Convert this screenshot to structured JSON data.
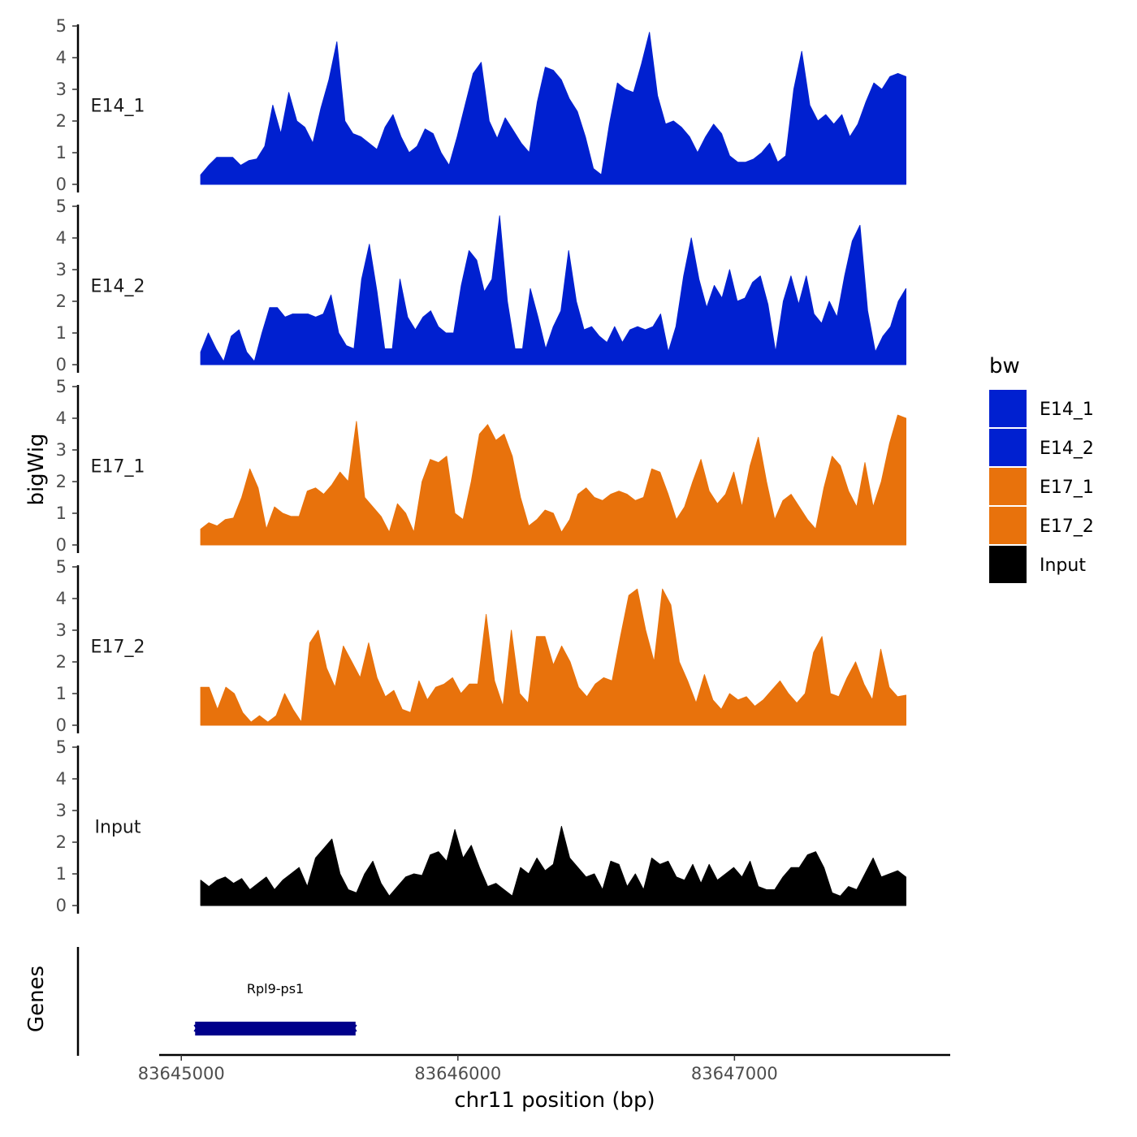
{
  "chart_data": {
    "type": "area",
    "ylabel": "bigWig",
    "xlabel": "chr11 position (bp)",
    "genes_label": "Genes",
    "x_range": [
      83644920,
      83647780
    ],
    "x_ticks": [
      {
        "value": 83645000,
        "label": "83645000"
      },
      {
        "value": 83646000,
        "label": "83646000"
      },
      {
        "value": 83647000,
        "label": "83647000"
      }
    ],
    "y_range": [
      0,
      5
    ],
    "y_ticks": [
      {
        "value": 0,
        "label": "0"
      },
      {
        "value": 1,
        "label": "1"
      },
      {
        "value": 2,
        "label": "2"
      },
      {
        "value": 3,
        "label": "3"
      },
      {
        "value": 4,
        "label": "4"
      },
      {
        "value": 5,
        "label": "5"
      }
    ],
    "x_start": 83645070,
    "x_end": 83647620,
    "legend": {
      "title": "bw",
      "entries": [
        {
          "label": "E14_1",
          "color": "#0020D0"
        },
        {
          "label": "E14_2",
          "color": "#0020D0"
        },
        {
          "label": "E17_1",
          "color": "#E8720C"
        },
        {
          "label": "E17_2",
          "color": "#E8720C"
        },
        {
          "label": "Input",
          "color": "#000000"
        }
      ]
    },
    "series": [
      {
        "name": "E14_1",
        "color": "#0020D0",
        "values": [
          0.3,
          0.6,
          0.85,
          0.85,
          0.85,
          0.6,
          0.75,
          0.8,
          1.2,
          2.5,
          1.6,
          2.9,
          2.0,
          1.8,
          1.3,
          2.4,
          3.3,
          4.5,
          2.0,
          1.6,
          1.5,
          1.3,
          1.1,
          1.8,
          2.2,
          1.5,
          1.0,
          1.2,
          1.75,
          1.6,
          1.0,
          0.6,
          1.5,
          2.5,
          3.5,
          3.85,
          2.0,
          1.45,
          2.1,
          1.7,
          1.3,
          1.0,
          2.6,
          3.7,
          3.6,
          3.3,
          2.7,
          2.3,
          1.5,
          0.5,
          0.3,
          1.9,
          3.2,
          3.0,
          2.9,
          3.8,
          4.8,
          2.8,
          1.9,
          2.0,
          1.8,
          1.5,
          1.0,
          1.5,
          1.9,
          1.6,
          0.9,
          0.7,
          0.7,
          0.8,
          1.0,
          1.3,
          0.7,
          0.9,
          3.0,
          4.2,
          2.5,
          2.0,
          2.2,
          1.9,
          2.2,
          1.5,
          1.9,
          2.6,
          3.2,
          3.0,
          3.4,
          3.5,
          3.4
        ]
      },
      {
        "name": "E14_2",
        "color": "#0020D0",
        "values": [
          0.4,
          1.0,
          0.5,
          0.1,
          0.9,
          1.1,
          0.4,
          0.1,
          1.0,
          1.8,
          1.8,
          1.5,
          1.6,
          1.6,
          1.6,
          1.5,
          1.6,
          2.2,
          1.0,
          0.6,
          0.5,
          2.7,
          3.8,
          2.3,
          0.5,
          0.5,
          2.7,
          1.5,
          1.1,
          1.5,
          1.7,
          1.2,
          1.0,
          1.0,
          2.5,
          3.6,
          3.3,
          2.3,
          2.7,
          4.7,
          2.0,
          0.5,
          0.5,
          2.4,
          1.5,
          0.5,
          1.2,
          1.7,
          3.6,
          2.0,
          1.1,
          1.2,
          0.9,
          0.7,
          1.2,
          0.7,
          1.1,
          1.2,
          1.1,
          1.2,
          1.6,
          0.4,
          1.2,
          2.8,
          4.0,
          2.7,
          1.8,
          2.5,
          2.1,
          3.0,
          2.0,
          2.1,
          2.6,
          2.8,
          1.9,
          0.4,
          2.0,
          2.8,
          1.9,
          2.8,
          1.6,
          1.3,
          2.0,
          1.5,
          2.8,
          3.9,
          4.4,
          1.7,
          0.4,
          0.9,
          1.2,
          2.0,
          2.4
        ]
      },
      {
        "name": "E17_1",
        "color": "#E8720C",
        "values": [
          0.5,
          0.7,
          0.6,
          0.8,
          0.85,
          1.5,
          2.4,
          1.8,
          0.5,
          1.2,
          1.0,
          0.9,
          0.9,
          1.7,
          1.8,
          1.6,
          1.9,
          2.3,
          2.0,
          3.9,
          1.5,
          1.2,
          0.9,
          0.4,
          1.3,
          1.0,
          0.4,
          2.0,
          2.7,
          2.6,
          2.8,
          1.0,
          0.8,
          2.0,
          3.5,
          3.8,
          3.3,
          3.5,
          2.8,
          1.5,
          0.6,
          0.8,
          1.1,
          1.0,
          0.4,
          0.8,
          1.6,
          1.8,
          1.5,
          1.4,
          1.6,
          1.7,
          1.6,
          1.4,
          1.5,
          2.4,
          2.3,
          1.6,
          0.8,
          1.2,
          2.0,
          2.7,
          1.7,
          1.3,
          1.6,
          2.3,
          1.2,
          2.5,
          3.4,
          2.0,
          0.8,
          1.4,
          1.6,
          1.2,
          0.8,
          0.5,
          1.8,
          2.8,
          2.5,
          1.7,
          1.2,
          2.6,
          1.2,
          2.0,
          3.2,
          4.1,
          4.0
        ]
      },
      {
        "name": "E17_2",
        "color": "#E8720C",
        "values": [
          1.2,
          1.2,
          0.5,
          1.2,
          1.0,
          0.4,
          0.1,
          0.3,
          0.1,
          0.3,
          1.0,
          0.5,
          0.1,
          2.6,
          3.0,
          1.8,
          1.2,
          2.5,
          2.0,
          1.5,
          2.6,
          1.5,
          0.9,
          1.1,
          0.5,
          0.4,
          1.4,
          0.8,
          1.2,
          1.3,
          1.5,
          1.0,
          1.3,
          1.3,
          3.5,
          1.4,
          0.6,
          3.0,
          1.0,
          0.7,
          2.8,
          2.8,
          1.9,
          2.5,
          2.0,
          1.2,
          0.9,
          1.3,
          1.5,
          1.4,
          2.8,
          4.1,
          4.3,
          3.0,
          2.0,
          4.3,
          3.8,
          2.0,
          1.4,
          0.7,
          1.6,
          0.8,
          0.5,
          1.0,
          0.8,
          0.9,
          0.6,
          0.8,
          1.1,
          1.4,
          1.0,
          0.7,
          1.0,
          2.3,
          2.8,
          1.0,
          0.9,
          1.5,
          2.0,
          1.3,
          0.8,
          2.4,
          1.2,
          0.9,
          0.95
        ]
      },
      {
        "name": "Input",
        "color": "#000000",
        "values": [
          0.8,
          0.6,
          0.8,
          0.9,
          0.7,
          0.85,
          0.5,
          0.7,
          0.9,
          0.5,
          0.8,
          1.0,
          1.2,
          0.6,
          1.5,
          1.8,
          2.1,
          1.0,
          0.5,
          0.4,
          1.0,
          1.4,
          0.7,
          0.3,
          0.6,
          0.9,
          1.0,
          0.95,
          1.6,
          1.7,
          1.4,
          2.4,
          1.5,
          1.9,
          1.2,
          0.6,
          0.7,
          0.5,
          0.3,
          1.2,
          1.0,
          1.5,
          1.1,
          1.3,
          2.5,
          1.5,
          1.2,
          0.9,
          1.0,
          0.5,
          1.4,
          1.3,
          0.6,
          1.0,
          0.5,
          1.5,
          1.3,
          1.4,
          0.9,
          0.8,
          1.3,
          0.7,
          1.3,
          0.8,
          1.0,
          1.2,
          0.9,
          1.4,
          0.6,
          0.5,
          0.5,
          0.9,
          1.2,
          1.2,
          1.6,
          1.7,
          1.2,
          0.4,
          0.3,
          0.6,
          0.5,
          1.0,
          1.5,
          0.9,
          1.0,
          1.1,
          0.9
        ]
      }
    ],
    "genes": [
      {
        "name": "Rpl9-ps1",
        "start": 83645050,
        "end": 83645630,
        "color": "#00008B"
      }
    ]
  }
}
